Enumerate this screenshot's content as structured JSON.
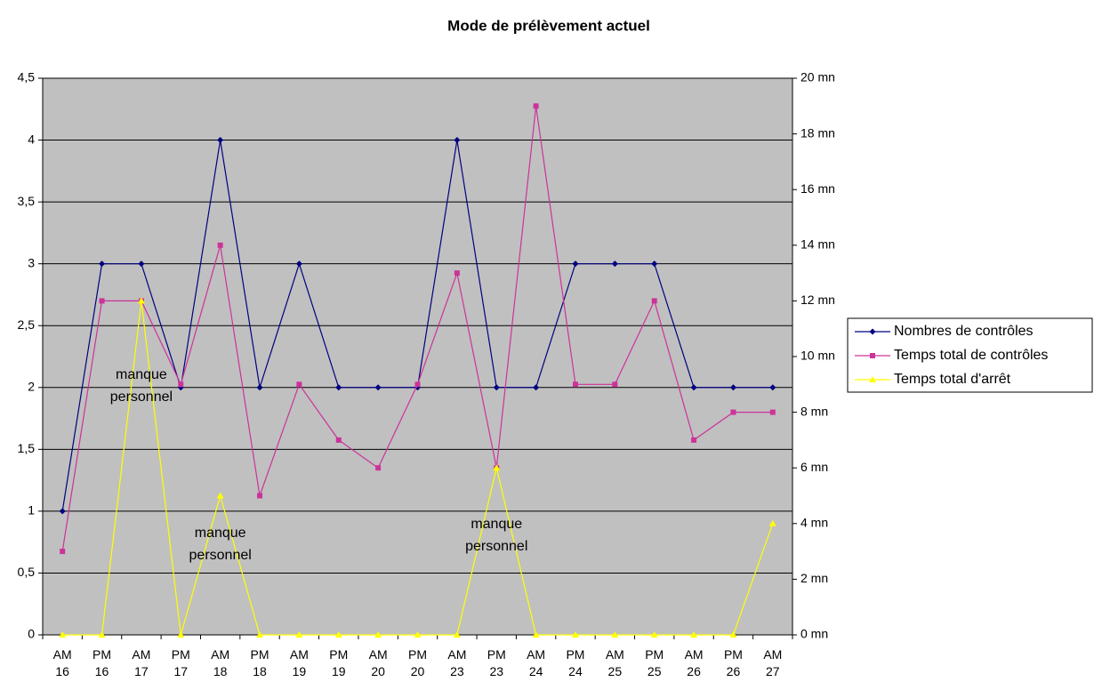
{
  "chart_data": {
    "type": "line",
    "title": "Mode de prélèvement actuel",
    "categories": [
      "AM 16",
      "PM 16",
      "AM 17",
      "PM 17",
      "AM 18",
      "PM 18",
      "AM 19",
      "PM 19",
      "AM 20",
      "PM 20",
      "AM 23",
      "PM 23",
      "AM 24",
      "PM 24",
      "AM 25",
      "PM 25",
      "AM 26",
      "PM 26",
      "AM 27"
    ],
    "series": [
      {
        "name": "Nombres de contrôles",
        "color": "#000080",
        "marker": "diamond",
        "values": [
          1,
          3,
          3,
          2,
          4,
          2,
          3,
          2,
          2,
          2,
          4,
          2,
          2,
          3,
          3,
          3,
          2,
          2,
          2
        ]
      },
      {
        "name": "Temps total de contrôles",
        "color": "#cc3399",
        "marker": "square",
        "axis": "y2",
        "values": [
          3,
          12,
          12,
          9,
          14,
          5,
          9,
          7,
          6,
          9,
          13,
          6,
          19,
          9,
          9,
          12,
          7,
          8,
          8
        ]
      },
      {
        "name": "Temps total d'arrêt",
        "color": "#ffff00",
        "marker": "triangle",
        "axis": "y2",
        "values": [
          0,
          0,
          12,
          0,
          5,
          0,
          0,
          0,
          0,
          0,
          0,
          6,
          0,
          0,
          0,
          0,
          0,
          0,
          4
        ]
      }
    ],
    "ylim": [
      0,
      4.5
    ],
    "yticks": [
      0,
      {
        "value": 0.5,
        "label": "0,5"
      },
      1,
      {
        "value": 1.5,
        "label": "1,5"
      },
      2,
      {
        "value": 2.5,
        "label": "2,5"
      },
      3,
      {
        "value": 3.5,
        "label": "3,5"
      },
      4,
      {
        "value": 4.5,
        "label": "4,5"
      }
    ],
    "y2lim": [
      0,
      20
    ],
    "y2ticks": [
      {
        "value": 0,
        "label": "0 mn"
      },
      {
        "value": 2,
        "label": "2 mn"
      },
      {
        "value": 4,
        "label": "4 mn"
      },
      {
        "value": 6,
        "label": "6 mn"
      },
      {
        "value": 8,
        "label": "8 mn"
      },
      {
        "value": 10,
        "label": "10 mn"
      },
      {
        "value": 12,
        "label": "12 mn"
      },
      {
        "value": 14,
        "label": "14 mn"
      },
      {
        "value": 16,
        "label": "16 mn"
      },
      {
        "value": 18,
        "label": "18 mn"
      },
      {
        "value": 20,
        "label": "20 mn"
      }
    ],
    "grid": true,
    "legend": "right",
    "annotations": [
      {
        "text": "manque personnel",
        "category": 2,
        "y": 2.1
      },
      {
        "text": "manque personnel",
        "category": 4,
        "y": 0.82
      },
      {
        "text": "manque personnel",
        "category": 11,
        "y": 0.89
      }
    ]
  }
}
